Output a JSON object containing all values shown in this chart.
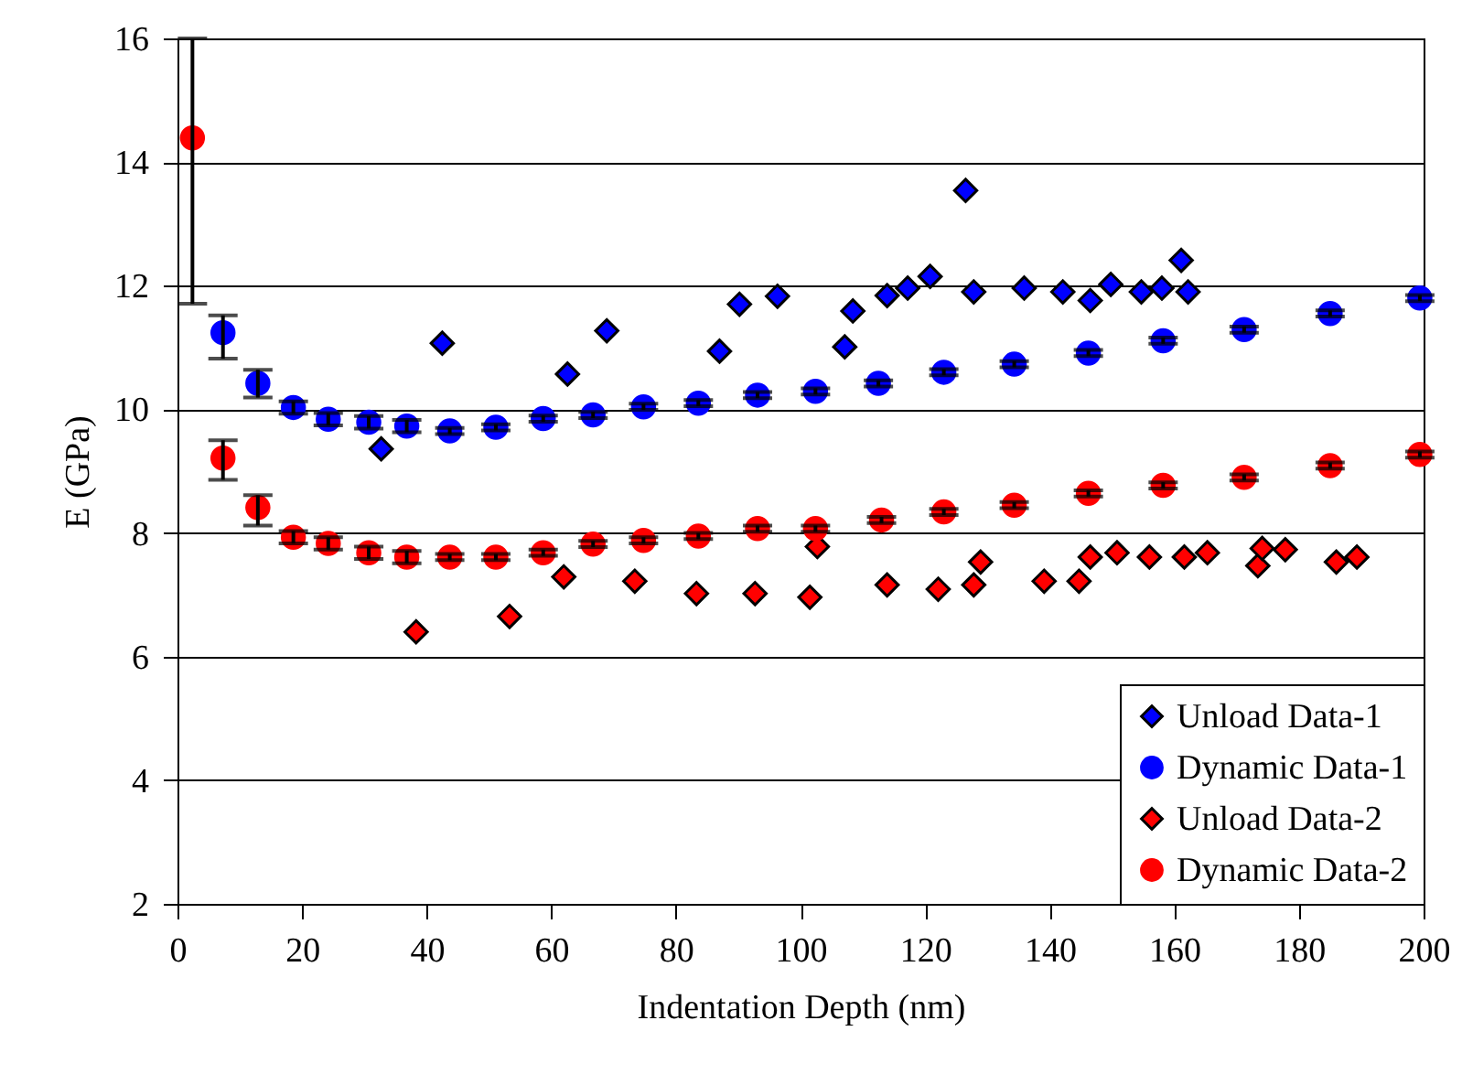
{
  "chart_data": {
    "type": "scatter",
    "xlabel": "Indentation Depth (nm)",
    "ylabel": "E (GPa)",
    "xlim": [
      0,
      200
    ],
    "xticks": [
      0,
      20,
      40,
      60,
      80,
      100,
      120,
      140,
      160,
      180,
      200
    ],
    "ylim": [
      2,
      16
    ],
    "yticks": [
      2,
      4,
      6,
      8,
      10,
      12,
      14,
      16
    ],
    "grid": "y",
    "legend": "bottom right",
    "series": [
      {
        "name": "Unload Data-1",
        "color": "#0000ff",
        "marker": "diamond",
        "x": [
          32.7,
          42.5,
          62.6,
          68.9,
          87.0,
          90.2,
          96.3,
          107.1,
          108.4,
          113.9,
          117.2,
          120.8,
          126.5,
          127.8,
          135.9,
          142.1,
          146.5,
          149.8,
          154.7,
          158.0,
          161.1,
          162.2
        ],
        "values": [
          9.36,
          11.07,
          10.57,
          11.27,
          10.94,
          11.7,
          11.83,
          11.01,
          11.59,
          11.84,
          11.96,
          12.15,
          13.54,
          11.9,
          11.96,
          11.9,
          11.76,
          12.02,
          11.9,
          11.96,
          12.41,
          11.9
        ]
      },
      {
        "name": "Dynamic Data-1",
        "color": "#0000ff",
        "marker": "circle",
        "x": [
          7.3,
          12.9,
          18.6,
          24.2,
          30.7,
          36.8,
          43.7,
          51.1,
          58.7,
          66.7,
          74.8,
          83.6,
          93.1,
          102.4,
          112.5,
          123.0,
          134.3,
          146.2,
          158.2,
          171.2,
          185.0,
          199.4
        ],
        "values": [
          11.24,
          10.42,
          10.03,
          9.84,
          9.79,
          9.73,
          9.65,
          9.71,
          9.85,
          9.91,
          10.04,
          10.1,
          10.23,
          10.29,
          10.42,
          10.6,
          10.73,
          10.91,
          11.11,
          11.29,
          11.55,
          11.8
        ],
        "errors": [
          [
            10.82,
            11.52
          ],
          [
            10.19,
            10.64
          ],
          0.1,
          0.1,
          0.1,
          0.1,
          0.05,
          0.05,
          0.05,
          0.05,
          0.05,
          0.05,
          0.05,
          0.05,
          0.05,
          0.05,
          0.05,
          0.05,
          0.05,
          0.05,
          0.05,
          0.05
        ]
      },
      {
        "name": "Unload Data-2",
        "color": "#ff0000",
        "marker": "diamond",
        "x": [
          38.3,
          53.3,
          62.0,
          73.4,
          83.3,
          92.7,
          101.5,
          102.7,
          113.9,
          122.1,
          127.8,
          128.9,
          139.1,
          144.7,
          146.5,
          150.8,
          156.0,
          161.6,
          165.3,
          173.4,
          174.1,
          177.8,
          186.0,
          189.3
        ],
        "values": [
          6.4,
          6.65,
          7.29,
          7.22,
          7.02,
          7.02,
          6.96,
          7.78,
          7.16,
          7.09,
          7.16,
          7.53,
          7.22,
          7.22,
          7.61,
          7.68,
          7.61,
          7.61,
          7.68,
          7.47,
          7.75,
          7.73,
          7.53,
          7.61
        ]
      },
      {
        "name": "Dynamic Data-2",
        "color": "#ff0000",
        "marker": "circle",
        "x": [
          2.4,
          7.3,
          12.9,
          18.6,
          24.2,
          30.7,
          36.8,
          43.7,
          51.1,
          58.7,
          66.7,
          74.8,
          83.6,
          93.1,
          102.4,
          113.0,
          123.0,
          134.3,
          146.2,
          158.2,
          171.2,
          185.0,
          199.4
        ],
        "values": [
          14.39,
          9.21,
          8.41,
          7.93,
          7.83,
          7.68,
          7.61,
          7.61,
          7.61,
          7.68,
          7.82,
          7.88,
          7.95,
          8.07,
          8.07,
          8.21,
          8.34,
          8.45,
          8.64,
          8.77,
          8.9,
          9.09,
          9.27
        ],
        "errors": [
          [
            11.71,
            16
          ],
          [
            8.86,
            9.5
          ],
          [
            8.12,
            8.61
          ],
          0.1,
          0.1,
          0.1,
          0.1,
          0.05,
          0.05,
          0.05,
          0.05,
          0.05,
          0.05,
          0.05,
          0.05,
          0.05,
          0.05,
          0.05,
          0.05,
          0.05,
          0.05,
          0.05,
          0.05
        ]
      }
    ]
  }
}
